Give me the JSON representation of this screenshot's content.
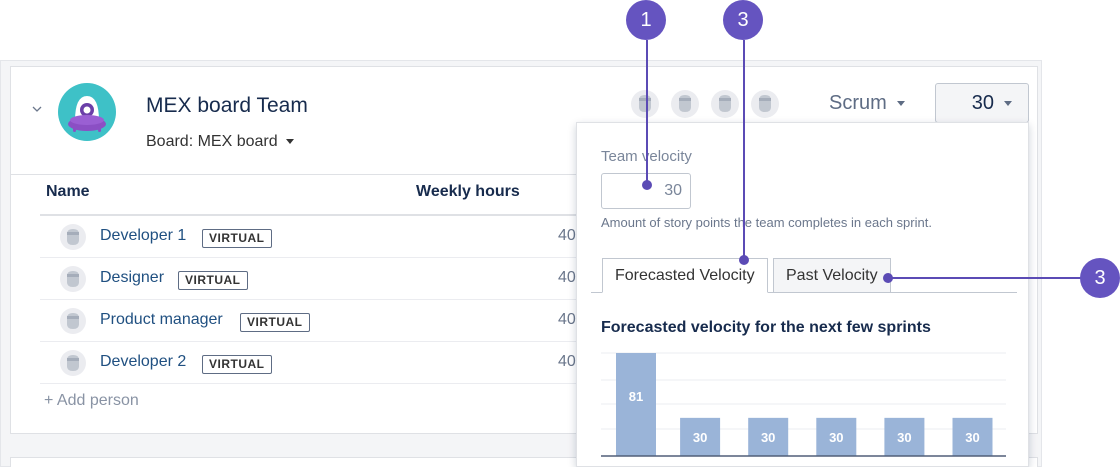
{
  "team": {
    "name": "MEX board Team",
    "board_label": "Board: MEX board",
    "method": "Scrum",
    "velocity_value": "30"
  },
  "table": {
    "col_name": "Name",
    "col_hours": "Weekly hours",
    "rows": [
      {
        "name": "Developer 1",
        "badge": "VIRTUAL",
        "hours": "40"
      },
      {
        "name": "Designer",
        "badge": "VIRTUAL",
        "hours": "40"
      },
      {
        "name": "Product manager",
        "badge": "VIRTUAL",
        "hours": "40"
      },
      {
        "name": "Developer 2",
        "badge": "VIRTUAL",
        "hours": "40"
      }
    ],
    "add_person": "+ Add person"
  },
  "popup": {
    "label": "Team velocity",
    "input_value": "30",
    "help": "Amount of story points the team completes in each sprint.",
    "tabs": [
      "Forecasted Velocity",
      "Past Velocity"
    ],
    "active_tab": "Forecasted Velocity",
    "chart_title": "Forecasted velocity for the next few sprints"
  },
  "chart_data": {
    "type": "bar",
    "title": "Forecasted velocity for the next few sprints",
    "categories": [
      "",
      "",
      "",
      "",
      "",
      ""
    ],
    "values": [
      81,
      30,
      30,
      30,
      30,
      30
    ],
    "data_labels": [
      "81",
      "30",
      "30",
      "30",
      "30",
      "30"
    ],
    "xlabel": "",
    "ylabel": "",
    "ylim": [
      0,
      81
    ],
    "grid": true,
    "bar_color": "#9ab4d8"
  },
  "callouts": [
    "1",
    "3",
    "3"
  ],
  "colors": {
    "link": "#205081",
    "callout": "#6554c0",
    "bar": "#9ab4d8"
  }
}
